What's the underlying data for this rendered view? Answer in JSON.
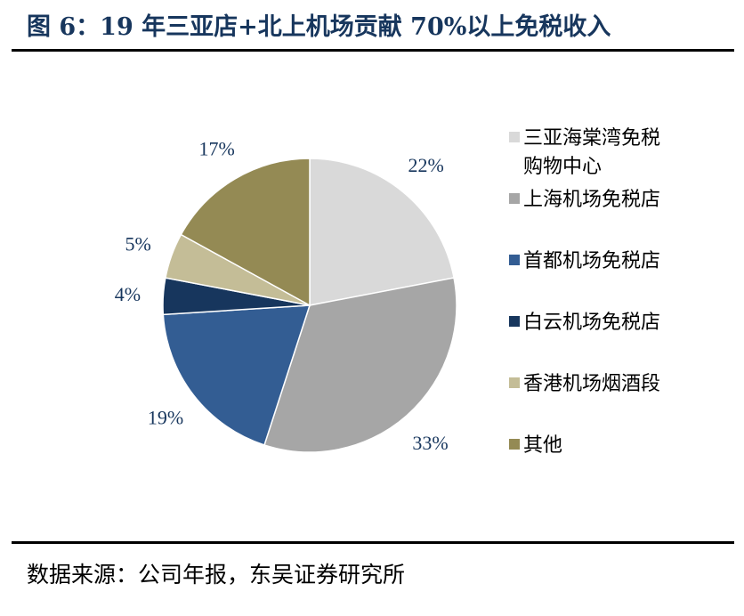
{
  "title": "图 6：19 年三亚店+北上机场贡献 70%以上免税收入",
  "source": "数据来源：公司年报，东吴证券研究所",
  "chart_data": {
    "type": "pie",
    "title": "",
    "start_angle_deg": 0,
    "direction": "clockwise",
    "legend_position": "right",
    "slices": [
      {
        "label": "三亚海棠湾免税购物中心",
        "legend_lines": [
          "三亚海棠湾免税",
          "购物中心"
        ],
        "value": 22,
        "display": "22%",
        "color": "#d9d9d9"
      },
      {
        "label": "上海机场免税店",
        "legend_lines": [
          "上海机场免税店"
        ],
        "value": 33,
        "display": "33%",
        "color": "#a6a6a6"
      },
      {
        "label": "首都机场免税店",
        "legend_lines": [
          "首都机场免税店"
        ],
        "value": 19,
        "display": "19%",
        "color": "#335d93"
      },
      {
        "label": "白云机场免税店",
        "legend_lines": [
          "白云机场免税店"
        ],
        "value": 4,
        "display": "4%",
        "color": "#17365d"
      },
      {
        "label": "香港机场烟酒段",
        "legend_lines": [
          "香港机场烟酒段"
        ],
        "value": 5,
        "display": "5%",
        "color": "#c4bd97"
      },
      {
        "label": "其他",
        "legend_lines": [
          "其他"
        ],
        "value": 17,
        "display": "17%",
        "color": "#948a54"
      }
    ]
  }
}
